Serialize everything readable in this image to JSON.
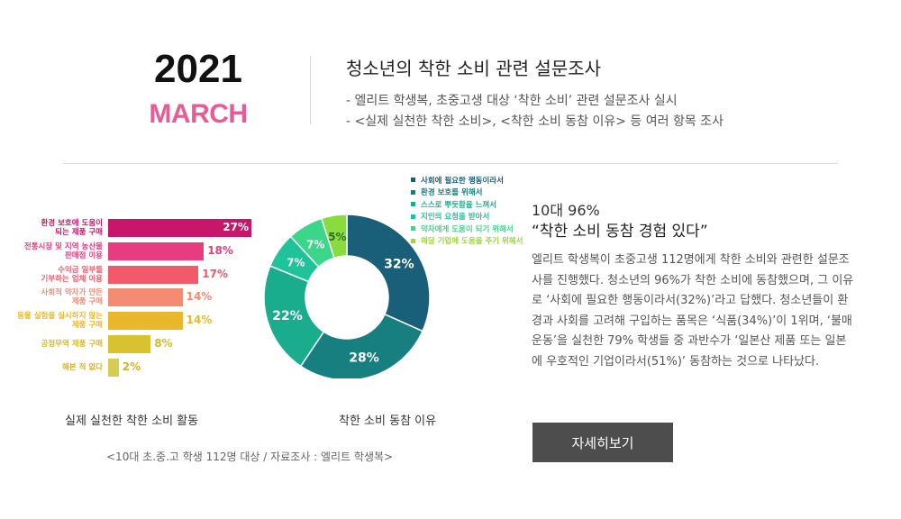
{
  "header": {
    "year": "2021",
    "month": "MARCH",
    "headline": "청소년의 착한 소비 관련 설문조사",
    "bullets": [
      "-  엘리트 학생복, 초중고생 대상 ‘착한 소비’ 관련 설문조사 실시",
      "-  <실제 실천한 착한 소비>, <착한 소비 동참 이유> 등 여러 항목 조사"
    ]
  },
  "chart_data": [
    {
      "type": "bar",
      "orientation": "horizontal",
      "title": "실제 실천한 착한 소비 활동",
      "categories": [
        [
          "환경 보호에 도움이",
          "되는 제품 구매"
        ],
        [
          "전통시장 및 지역 농산물",
          "판매점 이용"
        ],
        [
          "수익금 일부를",
          "기부하는 업체 이용"
        ],
        [
          "사회적 약자가 만든",
          "제품 구매"
        ],
        [
          "동물 실험을 실시하지 않는",
          "제품 구매"
        ],
        [
          "공정무역 제품 구매"
        ],
        [
          "해본 적 없다"
        ]
      ],
      "values": [
        27,
        18,
        17,
        14,
        14,
        8,
        2
      ],
      "value_labels": [
        "27%",
        "18%",
        "17%",
        "14%",
        "14%",
        "8%",
        "2%"
      ],
      "colors": [
        "#c8176a",
        "#e83c81",
        "#f2596a",
        "#f48b73",
        "#e8b82a",
        "#d8c230",
        "#d6cc52"
      ],
      "label_colors": [
        "#c8176a",
        "#e83c81",
        "#f2596a",
        "#f48b73",
        "#e8b82a",
        "#d8b82a",
        "#d6b02a"
      ]
    },
    {
      "type": "pie",
      "variant": "donut",
      "title": "착한 소비 동참 이유",
      "categories": [
        "사회에 필요한 행동이라서",
        "환경 보호를 위해서",
        "스스로 뿌듯함을 느껴서",
        "지인의 요청을 받아서",
        "약자에게 도움이 되기 위해서",
        "해당 기업에 도움을 주기 위해서"
      ],
      "values": [
        32,
        28,
        22,
        7,
        7,
        5
      ],
      "value_labels": [
        "32%",
        "28%",
        "22%",
        "7%",
        "7%",
        "5%"
      ],
      "colors": [
        "#1a5f7a",
        "#177f7f",
        "#19ad8d",
        "#1fc39a",
        "#3cd68a",
        "#88dc3c"
      ],
      "legend_colors": [
        "#1a5f7a",
        "#177f7f",
        "#19ad8d",
        "#1fc39a",
        "#3cd68a",
        "#9ed43c"
      ],
      "legend": "top-right"
    }
  ],
  "source": "<10대 초.중.고 학생 112명 대상 / 자료조사 : 엘리트 학생복>",
  "summary": {
    "stat": "10대 96%",
    "quote": "“착한 소비 동참 경험 있다”",
    "body": "엘리트 학생복이 초중고생 112명에게 착한 소비와 관련한 설문조사를 진행했다. 청소년의 96%가 착한 소비에 동참했으며, 그 이유로 ‘사회에 필요한 행동이라서(32%)’라고 답했다. 청소년들이 환경과 사회를 고려해 구입하는 품목은 ‘식품(34%)’이 1위며, ‘불매 운동’을 실천한 79% 학생들 중 과반수가 ‘일본산 제품 또는 일본에 우호적인 기업이라서(51%)’ 동참하는 것으로 나타났다."
  },
  "button": {
    "label": "자세히보기"
  }
}
